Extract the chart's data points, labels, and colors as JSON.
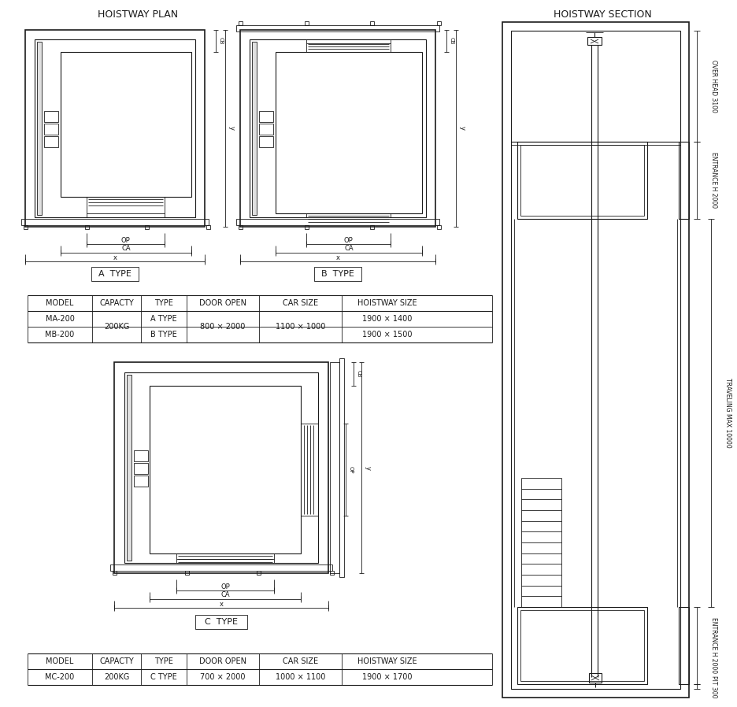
{
  "title_left": "HOISTWAY PLAN",
  "title_right": "HOISTWAY SECTION",
  "bg_color": "#ffffff",
  "line_color": "#1a1a1a",
  "table1_headers": [
    "MODEL",
    "CAPACTY",
    "TYPE",
    "DOOR OPEN",
    "CAR SIZE",
    "HOISTWAY SIZE"
  ],
  "table1_rows": [
    [
      "MA-200",
      "200KG",
      "A TYPE",
      "800 × 2000",
      "1100 × 1000",
      "1900 × 1400"
    ],
    [
      "MB-200",
      "",
      "B TYPE",
      "",
      "",
      "1900 × 1500"
    ]
  ],
  "table2_headers": [
    "MODEL",
    "CAPACTY",
    "TYPE",
    "DOOR OPEN",
    "CAR SIZE",
    "HOISTWAY SIZE"
  ],
  "table2_rows": [
    [
      "MC-200",
      "200KG",
      "C TYPE",
      "700 × 2000",
      "1000 × 1100",
      "1900 × 1700"
    ]
  ],
  "label_a_type": "A  TYPE",
  "label_b_type": "B  TYPE",
  "label_c_type": "C  TYPE"
}
